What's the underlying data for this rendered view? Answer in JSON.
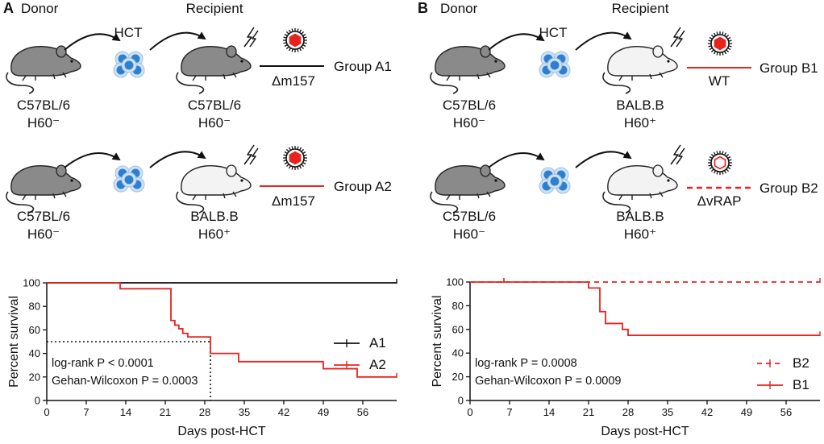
{
  "panels": [
    {
      "letter": "A",
      "donor_title": "Donor",
      "recipient_title": "Recipient",
      "hct_label": "HCT",
      "rows": [
        {
          "donor_strain": "C57BL/6",
          "donor_h60": "H60⁻",
          "recipient_strain": "C57BL/6",
          "recipient_h60": "H60⁻",
          "recipient_color": "grey",
          "virus": "Δm157",
          "virus_filled": true,
          "line_color": "#111111",
          "line_style": "solid",
          "group": "Group A1"
        },
        {
          "donor_strain": "C57BL/6",
          "donor_h60": "H60⁻",
          "recipient_strain": "BALB.B",
          "recipient_h60": "H60⁺",
          "recipient_color": "white",
          "virus": "Δm157",
          "virus_filled": true,
          "line_color": "#e8231e",
          "line_style": "solid",
          "group": "Group A2"
        }
      ]
    },
    {
      "letter": "B",
      "donor_title": "Donor",
      "recipient_title": "Recipient",
      "hct_label": "HCT",
      "rows": [
        {
          "donor_strain": "C57BL/6",
          "donor_h60": "H60⁻",
          "recipient_strain": "BALB.B",
          "recipient_h60": "H60⁺",
          "recipient_color": "white",
          "virus": "WT",
          "virus_filled": true,
          "line_color": "#e8231e",
          "line_style": "solid",
          "group": "Group B1"
        },
        {
          "donor_strain": "C57BL/6",
          "donor_h60": "H60⁻",
          "recipient_strain": "BALB.B",
          "recipient_h60": "H60⁺",
          "recipient_color": "white",
          "virus": "ΔvRAP",
          "virus_filled": false,
          "line_color": "#e8231e",
          "line_style": "dashed",
          "group": "Group B2"
        }
      ]
    }
  ],
  "colors": {
    "red": "#e8231e",
    "black": "#111111",
    "virus_red": "#e8231e",
    "cell_blue": "#2f7fd0",
    "cell_light": "#cfe2f5",
    "mouse_grey": "#8a8a8a",
    "mouse_white": "#f3f3f3"
  },
  "chart_data": [
    {
      "type": "line",
      "step": true,
      "xlabel": "Days post-HCT",
      "ylabel": "Percent survival",
      "xlim": [
        0,
        62
      ],
      "ylim": [
        0,
        100
      ],
      "xticks": [
        0,
        7,
        14,
        21,
        28,
        35,
        42,
        49,
        56
      ],
      "yticks": [
        0,
        20,
        40,
        60,
        80,
        100
      ],
      "legend_position": "right",
      "series": [
        {
          "name": "A1",
          "color": "#111111",
          "style": "solid",
          "x": [
            0,
            62
          ],
          "y": [
            100,
            100
          ],
          "censored": [
            62
          ]
        },
        {
          "name": "A2",
          "color": "#e8231e",
          "style": "solid",
          "x": [
            0,
            13,
            22,
            22.7,
            23.4,
            24.1,
            25,
            29,
            34,
            49,
            55,
            62
          ],
          "y": [
            100,
            95,
            68,
            64,
            61,
            57,
            54,
            40,
            33,
            27,
            20,
            20
          ],
          "censored": [
            62
          ]
        }
      ],
      "median_line": {
        "y": 50,
        "x": 29
      },
      "annotations": [
        "log-rank P < 0.0001",
        "Gehan-Wilcoxon P = 0.0003"
      ]
    },
    {
      "type": "line",
      "step": true,
      "xlabel": "Days post-HCT",
      "ylabel": "Percent survival",
      "xlim": [
        0,
        62
      ],
      "ylim": [
        0,
        100
      ],
      "xticks": [
        0,
        7,
        14,
        21,
        28,
        35,
        42,
        49,
        56
      ],
      "yticks": [
        0,
        20,
        40,
        60,
        80,
        100
      ],
      "legend_position": "right",
      "series": [
        {
          "name": "B2",
          "color": "#e8231e",
          "style": "dashed",
          "x": [
            0,
            62
          ],
          "y": [
            100,
            100
          ],
          "censored": [
            6,
            62
          ]
        },
        {
          "name": "B1",
          "color": "#e8231e",
          "style": "solid",
          "x": [
            0,
            21,
            23,
            24,
            27,
            28,
            62
          ],
          "y": [
            100,
            95,
            75,
            65,
            60,
            55,
            55
          ],
          "censored": [
            6,
            62
          ]
        }
      ],
      "annotations": [
        "log-rank P = 0.0008",
        "Gehan-Wilcoxon P = 0.0009"
      ]
    }
  ]
}
